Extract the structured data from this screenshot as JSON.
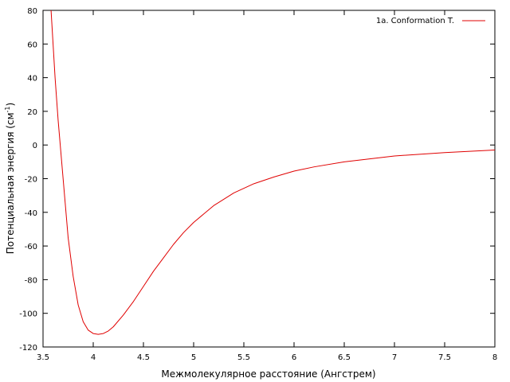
{
  "chart_data": {
    "type": "line",
    "xlabel": "Межмолекулярное расстояние (Ангстрем)",
    "ylabel": {
      "main": "Потенциальная энергия (см",
      "sup": "-1",
      "tail": ")"
    },
    "xlim": [
      3.5,
      8
    ],
    "ylim": [
      -120,
      80
    ],
    "xticks": [
      3.5,
      4,
      4.5,
      5,
      5.5,
      6,
      6.5,
      7,
      7.5,
      8
    ],
    "yticks": [
      -120,
      -100,
      -80,
      -60,
      -40,
      -20,
      0,
      20,
      40,
      60,
      80
    ],
    "xtick_labels": [
      "3.5",
      "4",
      "4.5",
      "5",
      "5.5",
      "6",
      "6.5",
      "7",
      "7.5",
      "8"
    ],
    "ytick_labels": [
      "-120",
      "-100",
      "-80",
      "-60",
      "-40",
      "-20",
      "0",
      "20",
      "40",
      "60",
      "80"
    ],
    "grid": false,
    "legend_position": "top-right",
    "series": [
      {
        "name": "1a. Conformation T.",
        "color": "#e00000",
        "x": [
          3.58,
          3.6,
          3.62,
          3.65,
          3.7,
          3.75,
          3.8,
          3.85,
          3.9,
          3.95,
          4.0,
          4.05,
          4.1,
          4.15,
          4.2,
          4.3,
          4.4,
          4.5,
          4.6,
          4.7,
          4.8,
          4.9,
          5.0,
          5.2,
          5.4,
          5.6,
          5.8,
          6.0,
          6.2,
          6.5,
          7.0,
          7.5,
          8.0
        ],
        "y": [
          80,
          60,
          40,
          15,
          -20,
          -55,
          -78,
          -95,
          -105,
          -110,
          -112,
          -112.5,
          -112,
          -110.5,
          -108,
          -101,
          -93,
          -84,
          -75,
          -67,
          -59,
          -52,
          -46,
          -36,
          -28.5,
          -23,
          -19,
          -15.5,
          -13,
          -10,
          -6.5,
          -4.5,
          -3
        ]
      }
    ]
  }
}
